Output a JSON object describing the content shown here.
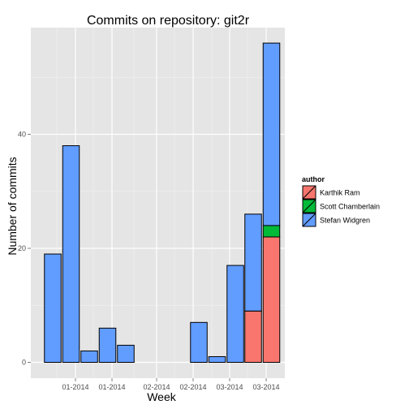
{
  "chart_data": {
    "type": "bar",
    "stacked": true,
    "title": "Commits on repository: git2r",
    "xlabel": "Week",
    "ylabel": "Number of commits",
    "ylim": [
      0,
      59
    ],
    "yticks": [
      0,
      20,
      40
    ],
    "x_tick_labels": [
      "01-2014",
      "01-2014",
      "02-2014",
      "02-2014",
      "03-2014",
      "03-2014"
    ],
    "legend": {
      "title": "author",
      "position": "right"
    },
    "grid": true,
    "series": [
      {
        "name": "Karthik Ram",
        "color": "#F8766D",
        "values": [
          0,
          0,
          0,
          0,
          0,
          0,
          0,
          0,
          0,
          0,
          0,
          9,
          22
        ]
      },
      {
        "name": "Scott Chamberlain",
        "color": "#00BA38",
        "values": [
          0,
          0,
          0,
          0,
          0,
          0,
          0,
          0,
          0,
          0,
          0,
          0,
          2
        ]
      },
      {
        "name": "Stefan Widgren",
        "color": "#619CFF",
        "values": [
          19,
          38,
          2,
          6,
          3,
          0,
          0,
          0,
          7,
          1,
          17,
          17,
          32
        ]
      }
    ]
  }
}
